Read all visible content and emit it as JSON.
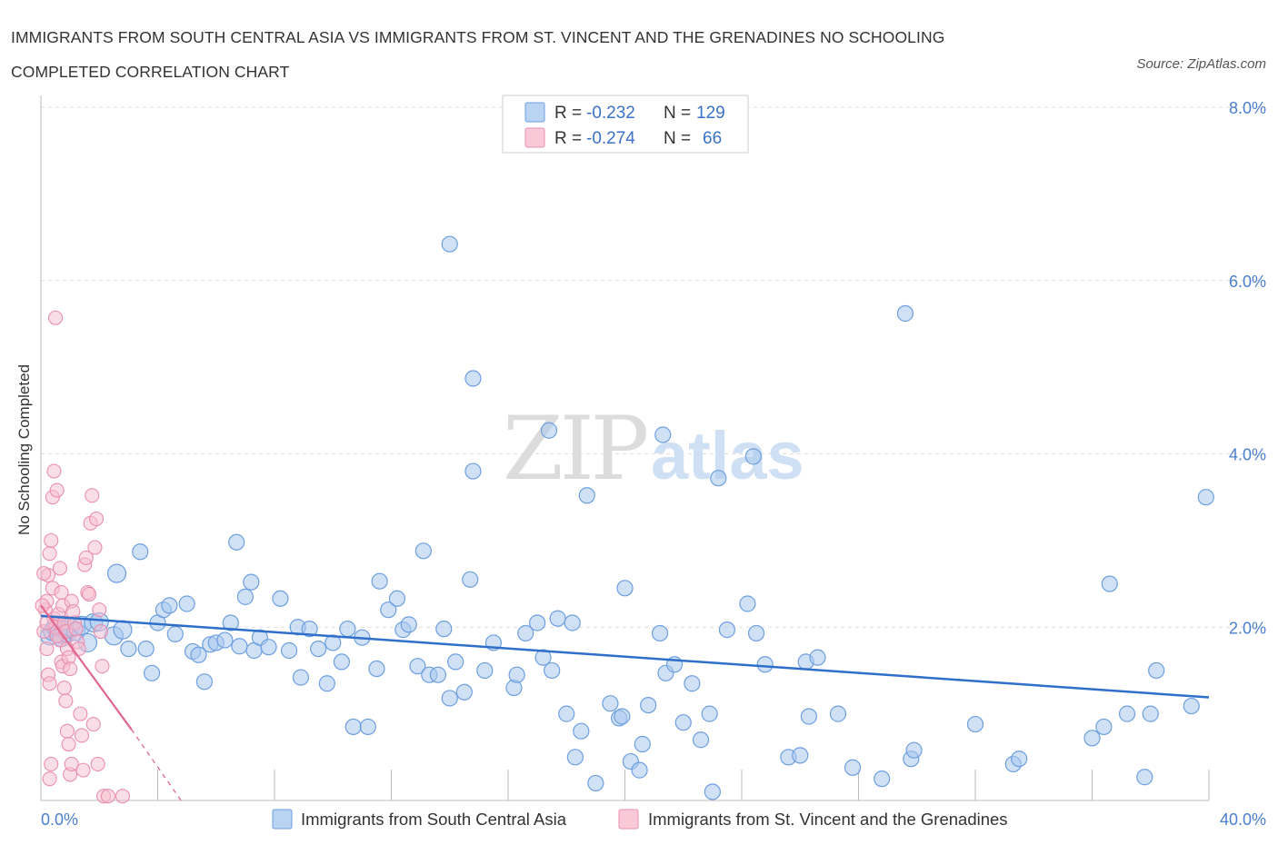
{
  "title_line1": "IMMIGRANTS FROM SOUTH CENTRAL ASIA VS IMMIGRANTS FROM ST. VINCENT AND THE GRENADINES NO SCHOOLING",
  "title_line2": "COMPLETED CORRELATION CHART",
  "source": "Source: ZipAtlas.com",
  "watermark": {
    "zip": "ZIP",
    "atlas": "atlas"
  },
  "stats": [
    {
      "r_label": "R =",
      "r": "-0.232",
      "n_label": "N =",
      "n": "129"
    },
    {
      "r_label": "R =",
      "r": "-0.274",
      "n_label": "N =",
      "n": "66"
    }
  ],
  "colors": {
    "blue_fill": "#a9c8ef",
    "blue_stroke": "#6d9fdf",
    "blue_line": "#2f6fca",
    "pink_fill": "#f6bdd0",
    "pink_stroke": "#ea8fae",
    "pink_line": "#e0668f",
    "grid": "#dddddd",
    "axis_text": "#4a7fcf"
  },
  "chart_data": {
    "type": "scatter",
    "title": "IMMIGRANTS FROM SOUTH CENTRAL ASIA VS IMMIGRANTS FROM ST. VINCENT AND THE GRENADINES NO SCHOOLING COMPLETED CORRELATION CHART",
    "xlabel": "",
    "ylabel": "No Schooling Completed",
    "xlim": [
      0,
      40
    ],
    "ylim": [
      0,
      8
    ],
    "x_tick_labels": [
      "0.0%",
      "40.0%"
    ],
    "y_ticks": [
      2,
      4,
      6,
      8
    ],
    "y_tick_labels": [
      "2.0%",
      "4.0%",
      "6.0%",
      "8.0%"
    ],
    "legend_position": "bottom-center",
    "series": [
      {
        "name": "Immigrants from South Central Asia",
        "color": "#6d9fdf",
        "trend": {
          "x": [
            0,
            40
          ],
          "y": [
            2.13,
            1.19
          ]
        },
        "points": [
          [
            0.3,
            1.9
          ],
          [
            0.4,
            1.95
          ],
          [
            0.5,
            2.0
          ],
          [
            0.6,
            1.92
          ],
          [
            0.7,
            1.88
          ],
          [
            0.8,
            1.97
          ],
          [
            0.9,
            1.93
          ],
          [
            1.0,
            2.0
          ],
          [
            1.2,
            1.95
          ],
          [
            1.4,
            2.02
          ],
          [
            1.6,
            1.82
          ],
          [
            1.8,
            2.05
          ],
          [
            2.0,
            2.06
          ],
          [
            2.5,
            1.9
          ],
          [
            2.8,
            1.97
          ],
          [
            3.0,
            1.75
          ],
          [
            3.6,
            1.75
          ],
          [
            3.8,
            1.47
          ],
          [
            4.0,
            2.05
          ],
          [
            4.2,
            2.2
          ],
          [
            4.4,
            2.25
          ],
          [
            4.6,
            1.92
          ],
          [
            5.0,
            2.27
          ],
          [
            5.2,
            1.72
          ],
          [
            5.4,
            1.68
          ],
          [
            5.6,
            1.37
          ],
          [
            5.8,
            1.8
          ],
          [
            6.0,
            1.82
          ],
          [
            6.3,
            1.85
          ],
          [
            6.5,
            2.05
          ],
          [
            6.8,
            1.78
          ],
          [
            7.0,
            2.35
          ],
          [
            7.3,
            1.73
          ],
          [
            7.5,
            1.88
          ],
          [
            7.8,
            1.77
          ],
          [
            8.2,
            2.33
          ],
          [
            8.5,
            1.73
          ],
          [
            8.8,
            2.0
          ],
          [
            8.9,
            1.42
          ],
          [
            9.2,
            1.98
          ],
          [
            9.5,
            1.75
          ],
          [
            9.8,
            1.35
          ],
          [
            10.0,
            1.82
          ],
          [
            10.3,
            1.6
          ],
          [
            10.5,
            1.98
          ],
          [
            10.7,
            0.85
          ],
          [
            11.0,
            1.88
          ],
          [
            11.2,
            0.85
          ],
          [
            11.5,
            1.52
          ],
          [
            11.6,
            2.53
          ],
          [
            11.9,
            2.2
          ],
          [
            12.2,
            2.33
          ],
          [
            12.4,
            1.97
          ],
          [
            12.6,
            2.03
          ],
          [
            12.9,
            1.55
          ],
          [
            13.3,
            1.45
          ],
          [
            13.6,
            1.45
          ],
          [
            13.8,
            1.98
          ],
          [
            14.0,
            1.18
          ],
          [
            14.2,
            1.6
          ],
          [
            14.5,
            1.25
          ],
          [
            14.7,
            2.55
          ],
          [
            15.2,
            1.5
          ],
          [
            15.5,
            1.82
          ],
          [
            16.2,
            1.3
          ],
          [
            16.3,
            1.45
          ],
          [
            16.6,
            1.93
          ],
          [
            17.0,
            2.05
          ],
          [
            17.2,
            1.65
          ],
          [
            17.5,
            1.5
          ],
          [
            17.7,
            2.1
          ],
          [
            18.0,
            1.0
          ],
          [
            18.2,
            2.05
          ],
          [
            18.3,
            0.5
          ],
          [
            18.5,
            0.8
          ],
          [
            18.7,
            3.52
          ],
          [
            19.0,
            0.2
          ],
          [
            19.5,
            1.12
          ],
          [
            19.8,
            0.95
          ],
          [
            19.9,
            0.97
          ],
          [
            20.0,
            2.45
          ],
          [
            20.2,
            0.45
          ],
          [
            20.5,
            0.35
          ],
          [
            20.6,
            0.65
          ],
          [
            20.8,
            1.1
          ],
          [
            21.2,
            1.93
          ],
          [
            21.4,
            1.47
          ],
          [
            21.7,
            1.57
          ],
          [
            22.0,
            0.9
          ],
          [
            22.3,
            1.35
          ],
          [
            22.6,
            0.7
          ],
          [
            22.9,
            1.0
          ],
          [
            23.0,
            0.1
          ],
          [
            23.5,
            1.97
          ],
          [
            24.2,
            2.27
          ],
          [
            24.5,
            1.93
          ],
          [
            24.8,
            1.57
          ],
          [
            25.6,
            0.5
          ],
          [
            26.0,
            0.52
          ],
          [
            26.2,
            1.6
          ],
          [
            26.3,
            0.97
          ],
          [
            26.6,
            1.65
          ],
          [
            27.3,
            1.0
          ],
          [
            27.8,
            0.38
          ],
          [
            28.8,
            0.25
          ],
          [
            29.6,
            5.62
          ],
          [
            29.8,
            0.48
          ],
          [
            29.9,
            0.58
          ],
          [
            32.0,
            0.88
          ],
          [
            33.3,
            0.42
          ],
          [
            33.5,
            0.48
          ],
          [
            36.0,
            0.72
          ],
          [
            36.4,
            0.85
          ],
          [
            36.6,
            2.5
          ],
          [
            37.2,
            1.0
          ],
          [
            37.8,
            0.27
          ],
          [
            38.0,
            1.0
          ],
          [
            38.2,
            1.5
          ],
          [
            39.4,
            1.09
          ],
          [
            39.9,
            3.5
          ],
          [
            14.0,
            6.42
          ],
          [
            14.8,
            4.87
          ],
          [
            14.8,
            3.8
          ],
          [
            17.4,
            4.27
          ],
          [
            21.3,
            4.22
          ],
          [
            23.2,
            3.72
          ],
          [
            24.4,
            3.97
          ],
          [
            13.1,
            2.88
          ],
          [
            2.6,
            2.62
          ],
          [
            3.4,
            2.87
          ],
          [
            6.7,
            2.98
          ],
          [
            7.2,
            2.52
          ]
        ]
      },
      {
        "name": "Immigrants from St. Vincent and the Grenadines",
        "color": "#ea8fae",
        "trend": {
          "x": [
            0,
            3.1
          ],
          "y": [
            2.25,
            0.82
          ],
          "dashed_to": [
            4.8,
            0
          ]
        },
        "points": [
          [
            0.1,
            1.95
          ],
          [
            0.15,
            2.2
          ],
          [
            0.2,
            2.3
          ],
          [
            0.25,
            2.6
          ],
          [
            0.3,
            2.85
          ],
          [
            0.35,
            3.0
          ],
          [
            0.4,
            3.5
          ],
          [
            0.45,
            3.8
          ],
          [
            0.5,
            5.57
          ],
          [
            0.55,
            3.58
          ],
          [
            0.6,
            2.05
          ],
          [
            0.65,
            1.85
          ],
          [
            0.7,
            1.6
          ],
          [
            0.75,
            1.55
          ],
          [
            0.8,
            1.3
          ],
          [
            0.85,
            1.15
          ],
          [
            0.9,
            0.8
          ],
          [
            0.95,
            0.65
          ],
          [
            1.0,
            0.3
          ],
          [
            1.05,
            0.42
          ],
          [
            0.2,
            1.75
          ],
          [
            0.25,
            1.45
          ],
          [
            0.3,
            1.35
          ],
          [
            0.35,
            0.42
          ],
          [
            0.4,
            2.45
          ],
          [
            0.45,
            2.1
          ],
          [
            0.5,
            2.0
          ],
          [
            0.55,
            1.9
          ],
          [
            0.6,
            2.15
          ],
          [
            0.65,
            2.68
          ],
          [
            0.7,
            2.4
          ],
          [
            0.75,
            2.25
          ],
          [
            0.8,
            2.05
          ],
          [
            0.85,
            1.95
          ],
          [
            0.9,
            1.75
          ],
          [
            0.95,
            1.65
          ],
          [
            1.0,
            1.52
          ],
          [
            1.05,
            2.3
          ],
          [
            1.1,
            2.18
          ],
          [
            1.15,
            2.05
          ],
          [
            1.2,
            1.98
          ],
          [
            1.25,
            1.83
          ],
          [
            1.3,
            1.75
          ],
          [
            1.35,
            1.0
          ],
          [
            1.4,
            0.75
          ],
          [
            1.45,
            0.35
          ],
          [
            1.5,
            2.72
          ],
          [
            1.55,
            2.8
          ],
          [
            1.6,
            2.4
          ],
          [
            1.65,
            2.38
          ],
          [
            1.7,
            3.2
          ],
          [
            1.75,
            3.52
          ],
          [
            1.8,
            0.88
          ],
          [
            1.85,
            2.92
          ],
          [
            1.9,
            3.25
          ],
          [
            1.95,
            0.42
          ],
          [
            2.0,
            2.2
          ],
          [
            2.05,
            1.95
          ],
          [
            2.1,
            1.55
          ],
          [
            2.15,
            0.05
          ],
          [
            2.3,
            0.05
          ],
          [
            2.8,
            0.05
          ],
          [
            0.05,
            2.25
          ],
          [
            0.1,
            2.62
          ],
          [
            0.2,
            2.05
          ],
          [
            0.3,
            0.25
          ]
        ]
      }
    ]
  }
}
